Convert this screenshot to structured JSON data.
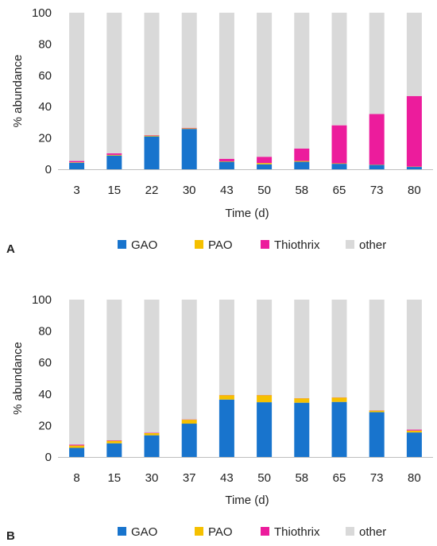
{
  "colors": {
    "GAO": "#1874CD",
    "PAO": "#F5C000",
    "Thiothrix": "#EC1C9C",
    "other": "#D9D9D9",
    "grid": "#D9D9D9",
    "axis": "#BFBFBF"
  },
  "chart_data": [
    {
      "panel_label": "A",
      "type": "bar",
      "stacked": true,
      "categories": [
        "3",
        "15",
        "22",
        "30",
        "43",
        "50",
        "58",
        "65",
        "73",
        "80"
      ],
      "xlabel": "Time (d)",
      "ylabel": "% abundance",
      "ylim": [
        0,
        100
      ],
      "yticks": [
        "0",
        "20",
        "40",
        "60",
        "80",
        "100"
      ],
      "grid": false,
      "legend_position": "bottom",
      "series": [
        {
          "name": "GAO",
          "values": [
            4.2,
            8.8,
            21.0,
            25.8,
            4.8,
            3.2,
            4.8,
            3.5,
            2.8,
            1.5
          ]
        },
        {
          "name": "PAO",
          "values": [
            0.3,
            0.4,
            0.5,
            0.4,
            0.3,
            0.8,
            0.5,
            0.3,
            0.2,
            0.2
          ]
        },
        {
          "name": "Thiothrix",
          "values": [
            0.8,
            1.0,
            0.3,
            0.3,
            1.6,
            4.0,
            7.9,
            24.3,
            32.3,
            45.1
          ]
        },
        {
          "name": "other",
          "values": [
            94.7,
            89.8,
            78.2,
            73.5,
            93.3,
            92.0,
            86.8,
            71.9,
            64.7,
            53.2
          ]
        }
      ]
    },
    {
      "panel_label": "B",
      "type": "bar",
      "stacked": true,
      "categories": [
        "8",
        "15",
        "30",
        "37",
        "43",
        "50",
        "58",
        "65",
        "73",
        "80"
      ],
      "xlabel": "Time (d)",
      "ylabel": "% abundance",
      "ylim": [
        0,
        100
      ],
      "yticks": [
        "0",
        "20",
        "40",
        "60",
        "80",
        "100"
      ],
      "grid": false,
      "legend_position": "bottom",
      "series": [
        {
          "name": "GAO",
          "values": [
            5.8,
            8.7,
            13.8,
            21.2,
            36.5,
            34.8,
            34.5,
            35.0,
            28.5,
            15.6
          ]
        },
        {
          "name": "PAO",
          "values": [
            1.5,
            1.6,
            1.4,
            2.5,
            2.8,
            4.5,
            2.8,
            2.8,
            1.0,
            1.2
          ]
        },
        {
          "name": "Thiothrix",
          "values": [
            0.6,
            0.3,
            0.3,
            0.2,
            0.1,
            0.1,
            0.1,
            0.1,
            0.2,
            0.6
          ]
        },
        {
          "name": "other",
          "values": [
            92.1,
            89.4,
            84.5,
            76.1,
            60.6,
            60.6,
            62.6,
            62.1,
            70.3,
            82.6
          ]
        }
      ]
    }
  ]
}
